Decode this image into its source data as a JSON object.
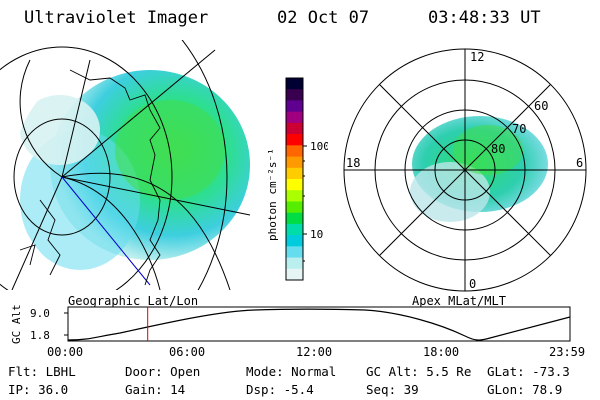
{
  "header": {
    "title": "Ultraviolet Imager",
    "date": "02 Oct 07",
    "time": "03:48:33 UT"
  },
  "colorbar": {
    "label": "photon cm⁻²s⁻¹",
    "ticks": [
      "100",
      "10"
    ],
    "colors": [
      "#000033",
      "#3a0050",
      "#600090",
      "#a00080",
      "#cc0033",
      "#ff0000",
      "#ff6600",
      "#ff9900",
      "#ffcc00",
      "#ffff00",
      "#aaff00",
      "#55ee00",
      "#00dd44",
      "#00ddaa",
      "#00ccdd",
      "#66ddee",
      "#bbeeee",
      "#e6f4f4"
    ]
  },
  "left_panel": {
    "label": "Geographic Lat/Lon"
  },
  "right_panel": {
    "label": "Apex MLat/MLT",
    "mlt_labels": {
      "top": "12",
      "left": "18",
      "right": "6",
      "bottom": "0"
    },
    "lat_labels": [
      "60",
      "70",
      "80"
    ]
  },
  "alt_plot": {
    "ylabel": "GC Alt",
    "yticks": [
      "9.0",
      "1.8"
    ],
    "xticks": [
      "00:00",
      "06:00",
      "12:00",
      "18:00",
      "23:59"
    ],
    "cursor_hour": 3.81
  },
  "info": {
    "flt": "Flt: LBHL",
    "door": "Door: Open",
    "mode": "Mode: Normal",
    "gcalt": "GC Alt: 5.5 Re",
    "glat": "GLat: -73.3",
    "ip": "IP: 36.0",
    "gain": "Gain: 14",
    "dsp": "Dsp:   -5.4",
    "seq": "Seq: 39",
    "glon": "GLon:  78.9"
  }
}
